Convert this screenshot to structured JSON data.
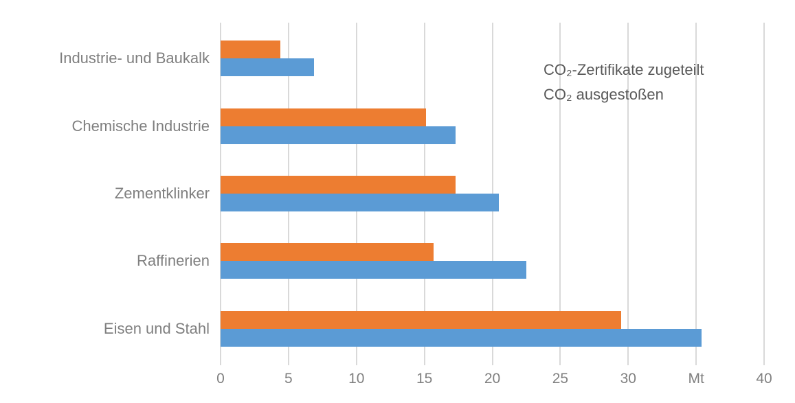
{
  "chart_data": {
    "type": "bar",
    "orientation": "horizontal",
    "title": "",
    "categories": [
      "Industrie- und Baukalk",
      "Chemische Industrie",
      "Zementklinker",
      "Raffinerien",
      "Eisen und Stahl"
    ],
    "series": [
      {
        "name": "CO₂-Zertifikate zugeteilt",
        "color": "#ED7D31",
        "values": [
          4.4,
          15.1,
          17.3,
          15.7,
          29.5
        ]
      },
      {
        "name": "CO₂ ausgestoßen",
        "color": "#5B9BD5",
        "values": [
          6.9,
          17.3,
          20.5,
          22.5,
          35.4
        ]
      }
    ],
    "xlim": [
      0,
      40
    ],
    "x_ticks": [
      0,
      5,
      10,
      15,
      20,
      25,
      30,
      35,
      40
    ],
    "x_tick_labels": [
      "0",
      "5",
      "10",
      "15",
      "20",
      "25",
      "30",
      "Mt",
      "40"
    ],
    "unit": "Mt",
    "grid": true,
    "gridline_color": "#D9D9D9",
    "legend_position": "inside-top-right-of-first-bars",
    "text_colors": {
      "category": "#7F7F7F",
      "axis": "#808080",
      "legend": "#595959"
    }
  }
}
